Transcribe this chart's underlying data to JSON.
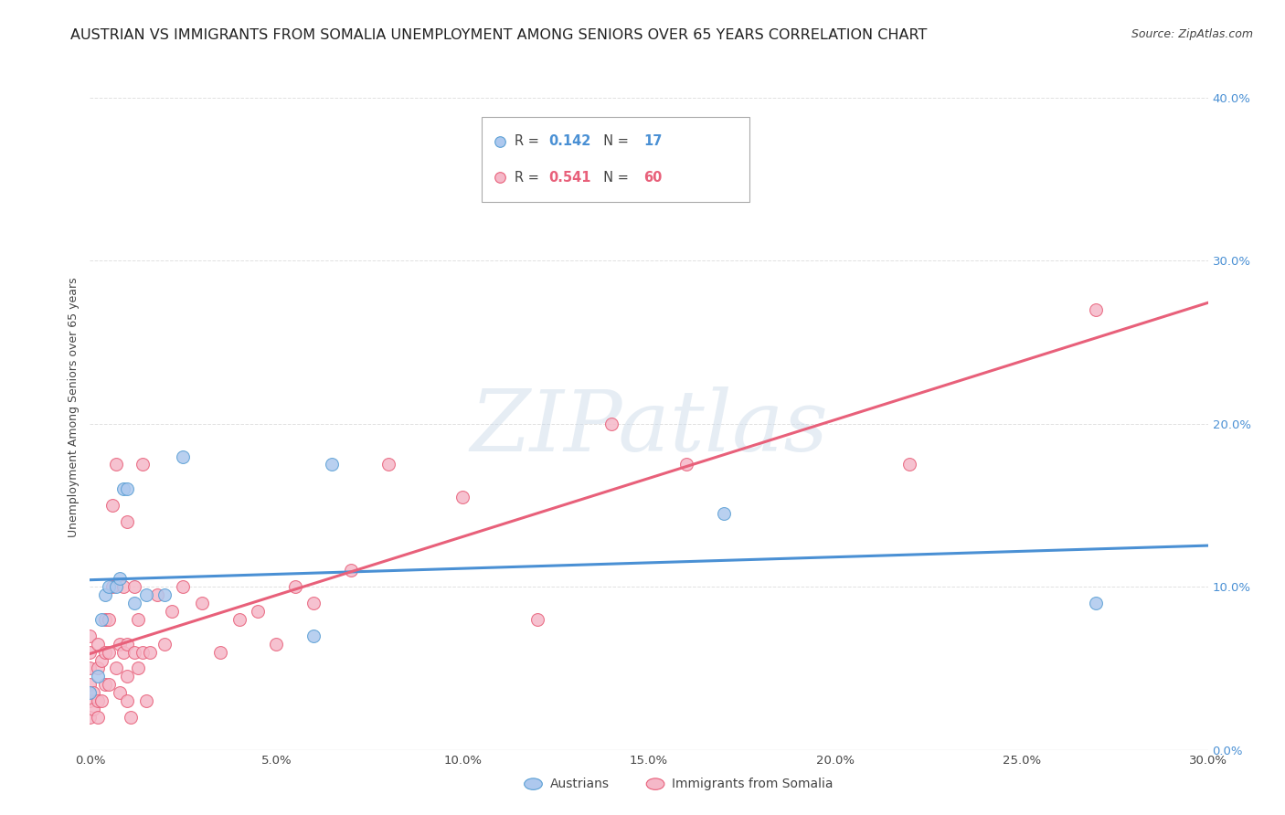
{
  "title": "AUSTRIAN VS IMMIGRANTS FROM SOMALIA UNEMPLOYMENT AMONG SENIORS OVER 65 YEARS CORRELATION CHART",
  "source": "Source: ZipAtlas.com",
  "ylabel": "Unemployment Among Seniors over 65 years",
  "xlim": [
    0.0,
    0.3
  ],
  "ylim": [
    0.0,
    0.42
  ],
  "y_ticks": [
    0.0,
    0.1,
    0.2,
    0.3,
    0.4
  ],
  "x_ticks": [
    0.0,
    0.05,
    0.1,
    0.15,
    0.2,
    0.25,
    0.3
  ],
  "legend_r_austrians": "0.142",
  "legend_n_austrians": "17",
  "legend_r_somalia": "0.541",
  "legend_n_somalia": "60",
  "legend_label_austrians": "Austrians",
  "legend_label_somalia": "Immigrants from Somalia",
  "color_fill_austrians": "#adc8ee",
  "color_edge_austrians": "#5a9fd4",
  "color_fill_somalia": "#f5b8c8",
  "color_edge_somalia": "#e8607a",
  "color_line_austrians": "#4a90d4",
  "color_line_somalia": "#e8607a",
  "color_tick_right": "#4a90d4",
  "austrians_x": [
    0.0,
    0.002,
    0.003,
    0.004,
    0.005,
    0.007,
    0.008,
    0.009,
    0.01,
    0.012,
    0.015,
    0.02,
    0.025,
    0.06,
    0.065,
    0.17,
    0.27
  ],
  "austrians_y": [
    0.035,
    0.045,
    0.08,
    0.095,
    0.1,
    0.1,
    0.105,
    0.16,
    0.16,
    0.09,
    0.095,
    0.095,
    0.18,
    0.07,
    0.175,
    0.145,
    0.09
  ],
  "somalia_x": [
    0.0,
    0.0,
    0.0,
    0.0,
    0.0,
    0.0,
    0.001,
    0.001,
    0.002,
    0.002,
    0.002,
    0.002,
    0.003,
    0.003,
    0.004,
    0.004,
    0.004,
    0.005,
    0.005,
    0.005,
    0.006,
    0.006,
    0.007,
    0.007,
    0.008,
    0.008,
    0.009,
    0.009,
    0.01,
    0.01,
    0.01,
    0.01,
    0.011,
    0.012,
    0.012,
    0.013,
    0.013,
    0.014,
    0.014,
    0.015,
    0.016,
    0.018,
    0.02,
    0.022,
    0.025,
    0.03,
    0.035,
    0.04,
    0.045,
    0.05,
    0.055,
    0.06,
    0.07,
    0.08,
    0.1,
    0.12,
    0.14,
    0.16,
    0.22,
    0.27
  ],
  "somalia_y": [
    0.02,
    0.03,
    0.04,
    0.05,
    0.06,
    0.07,
    0.025,
    0.035,
    0.02,
    0.03,
    0.05,
    0.065,
    0.03,
    0.055,
    0.04,
    0.06,
    0.08,
    0.04,
    0.06,
    0.08,
    0.1,
    0.15,
    0.05,
    0.175,
    0.035,
    0.065,
    0.06,
    0.1,
    0.03,
    0.045,
    0.065,
    0.14,
    0.02,
    0.06,
    0.1,
    0.05,
    0.08,
    0.06,
    0.175,
    0.03,
    0.06,
    0.095,
    0.065,
    0.085,
    0.1,
    0.09,
    0.06,
    0.08,
    0.085,
    0.065,
    0.1,
    0.09,
    0.11,
    0.175,
    0.155,
    0.08,
    0.2,
    0.175,
    0.175,
    0.27
  ],
  "watermark_text": "ZIPatlas",
  "background_color": "#FFFFFF",
  "grid_color": "#DDDDDD",
  "title_fontsize": 11.5,
  "source_fontsize": 9,
  "tick_fontsize": 9.5,
  "ylabel_fontsize": 9,
  "legend_fontsize": 10.5
}
